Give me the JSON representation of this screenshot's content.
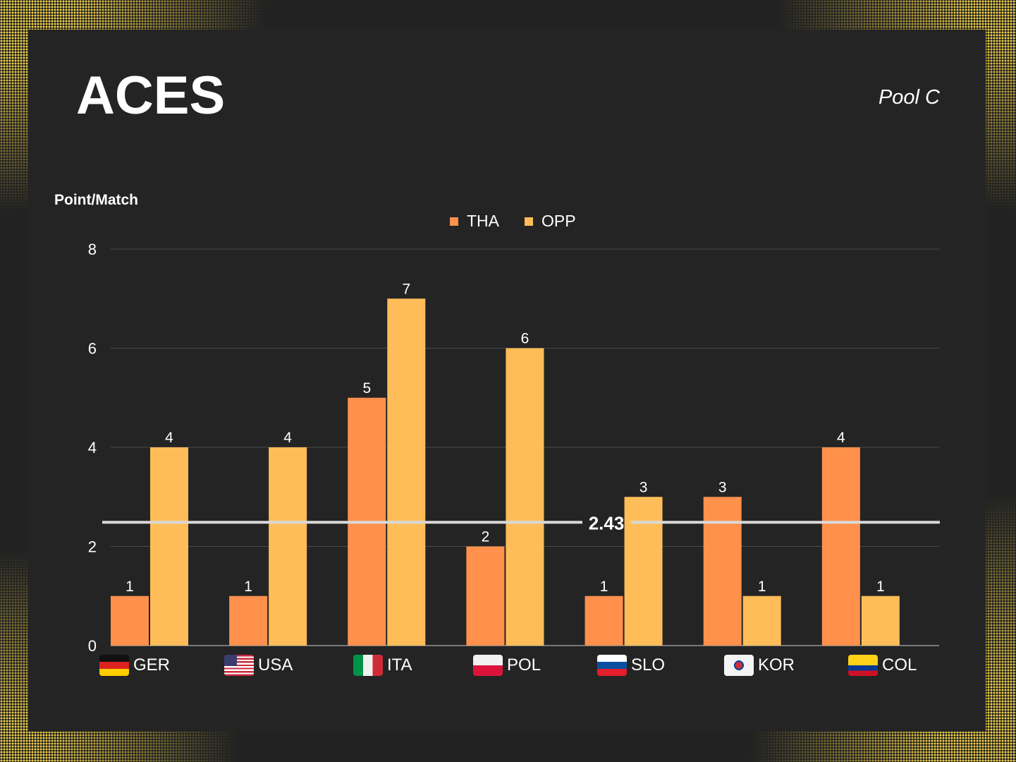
{
  "title": "ACES",
  "subtitle": "Pool C",
  "chart_data": {
    "type": "bar",
    "ylabel": "Point/Match",
    "ylim": [
      0,
      8
    ],
    "yticks": [
      "0",
      "2",
      "4",
      "6",
      "8"
    ],
    "categories": [
      "GER",
      "USA",
      "ITA",
      "POL",
      "SLO",
      "KOR",
      "COL"
    ],
    "series": [
      {
        "name": "THA",
        "color": "#ff914d",
        "values": [
          1,
          1,
          5,
          2,
          1,
          3,
          4
        ]
      },
      {
        "name": "OPP",
        "color": "#ffbd59",
        "values": [
          4,
          4,
          7,
          6,
          3,
          1,
          1
        ]
      }
    ],
    "reference_line": {
      "value": 2.43,
      "label": "2.43",
      "color": "#d9d9d9"
    },
    "legend": "top-center",
    "grid": true
  }
}
